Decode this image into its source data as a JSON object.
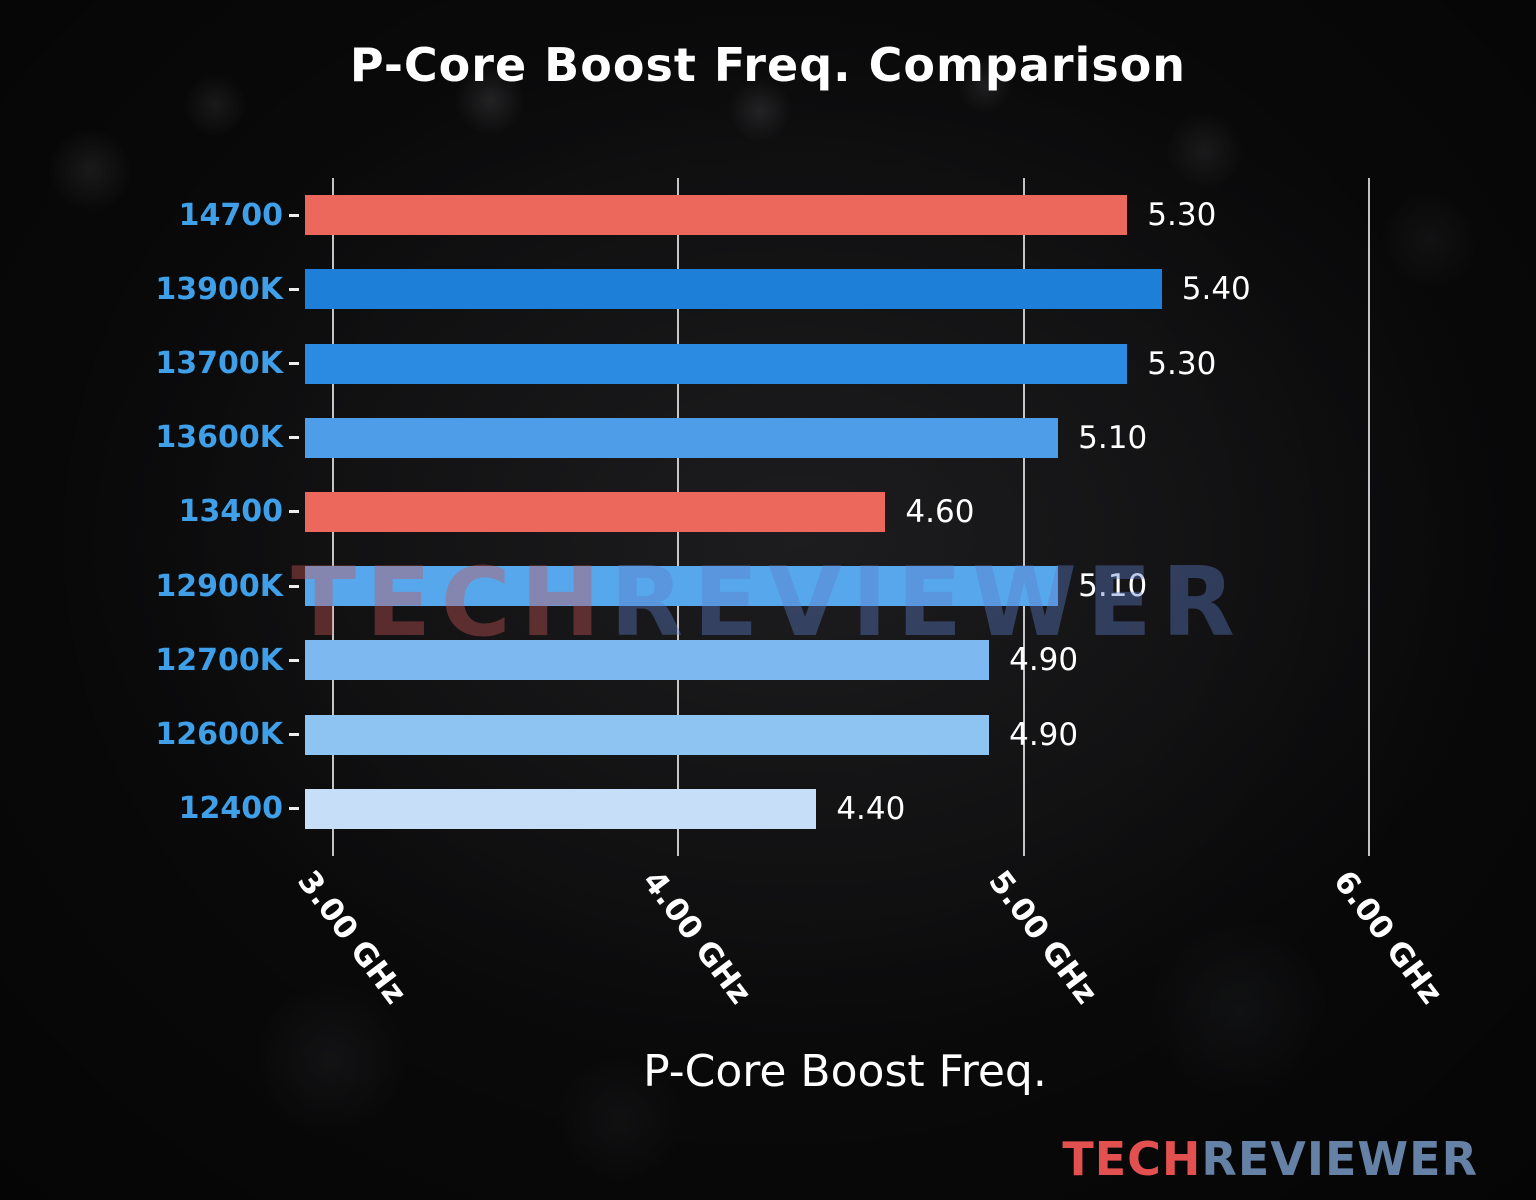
{
  "title": "P-Core Boost Freq. Comparison",
  "watermark": {
    "tech": "TECH",
    "reviewer": "REVIEWER"
  },
  "logo": {
    "tech": "TECH",
    "reviewer": "REVIEWER"
  },
  "chart_data": {
    "type": "bar",
    "orientation": "horizontal",
    "title": "P-Core Boost Freq. Comparison",
    "xlabel": "P-Core Boost Freq.",
    "categories": [
      "14700",
      "13900K",
      "13700K",
      "13600K",
      "13400",
      "12900K",
      "12700K",
      "12600K",
      "12400"
    ],
    "values": [
      5.3,
      5.4,
      5.3,
      5.1,
      4.6,
      5.1,
      4.9,
      4.9,
      4.4
    ],
    "value_labels": [
      "5.30",
      "5.40",
      "5.30",
      "5.10",
      "4.60",
      "5.10",
      "4.90",
      "4.90",
      "4.40"
    ],
    "bar_colors": [
      "#ec685c",
      "#1e7fd8",
      "#2b8ae2",
      "#4d9de8",
      "#ec685c",
      "#57a7ec",
      "#7db9f0",
      "#8ec4f2",
      "#c7def8"
    ],
    "x_ticks": [
      3,
      4,
      5,
      6
    ],
    "x_tick_labels": [
      "3.00 GHz",
      "4.00 GHz",
      "5.00 GHz",
      "6.00 GHz"
    ],
    "xlim": [
      2.92,
      6.35
    ],
    "grid": true,
    "legend": false,
    "category_color": "#3f9fe8",
    "grid_color": "rgba(242,242,242,0.8)",
    "highlight_color": "#ec685c",
    "text_color": "#ffffff"
  }
}
